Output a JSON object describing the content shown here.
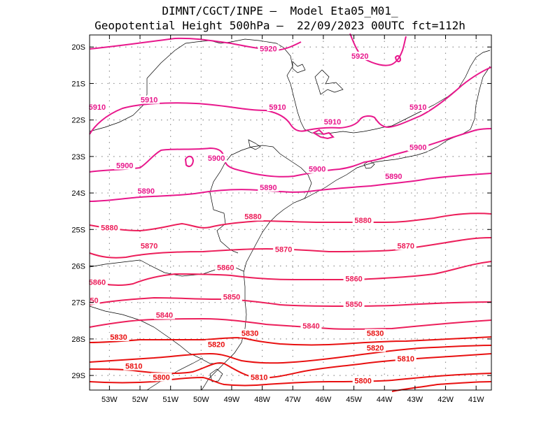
{
  "header": {
    "line1": "DIMNT/CGCT/INPE –  Model Eta05_M01_",
    "line2": "Geopotential Height 500hPa –  22/09/2023 00UTC fct=112h"
  },
  "colors": {
    "high": "#e8188c",
    "mid": "#ec1e5a",
    "low": "#e81010",
    "coast": "#000000",
    "grid": "#909090"
  },
  "axes": {
    "lat_labels": [
      "20S",
      "21S",
      "22S",
      "23S",
      "24S",
      "25S",
      "26S",
      "27S",
      "28S",
      "29S"
    ],
    "lon_labels": [
      "53W",
      "52W",
      "51W",
      "50W",
      "49W",
      "48W",
      "47W",
      "46W",
      "45W",
      "44W",
      "43W",
      "42W",
      "41W"
    ]
  },
  "map_data": {
    "type": "contour",
    "variable": "Geopotential Height 500hPa",
    "contour_labels": [
      {
        "text": "5920",
        "lon": -47.8,
        "lat": -20.1,
        "band": "high"
      },
      {
        "text": "5920",
        "lon": -44.8,
        "lat": -20.3,
        "band": "high"
      },
      {
        "text": "5910",
        "lon": -53.4,
        "lat": -21.7,
        "band": "high"
      },
      {
        "text": "5910",
        "lon": -51.7,
        "lat": -21.5,
        "band": "high"
      },
      {
        "text": "5910",
        "lon": -47.5,
        "lat": -21.7,
        "band": "high"
      },
      {
        "text": "5910",
        "lon": -45.7,
        "lat": -22.1,
        "band": "high"
      },
      {
        "text": "5910",
        "lon": -42.9,
        "lat": -21.7,
        "band": "high"
      },
      {
        "text": "5900",
        "lon": -52.5,
        "lat": -23.3,
        "band": "high"
      },
      {
        "text": "5900",
        "lon": -49.5,
        "lat": -23.1,
        "band": "high"
      },
      {
        "text": "5900",
        "lon": -46.2,
        "lat": -23.4,
        "band": "high"
      },
      {
        "text": "5900",
        "lon": -42.9,
        "lat": -22.8,
        "band": "high"
      },
      {
        "text": "5890",
        "lon": -51.8,
        "lat": -24.0,
        "band": "high"
      },
      {
        "text": "5890",
        "lon": -47.8,
        "lat": -23.9,
        "band": "high"
      },
      {
        "text": "5890",
        "lon": -43.7,
        "lat": -23.6,
        "band": "high"
      },
      {
        "text": "5880",
        "lon": -53.0,
        "lat": -25.0,
        "band": "mid"
      },
      {
        "text": "5880",
        "lon": -48.3,
        "lat": -24.7,
        "band": "mid"
      },
      {
        "text": "5880",
        "lon": -44.7,
        "lat": -24.8,
        "band": "mid"
      },
      {
        "text": "5870",
        "lon": -51.7,
        "lat": -25.5,
        "band": "mid"
      },
      {
        "text": "5870",
        "lon": -47.3,
        "lat": -25.6,
        "band": "mid"
      },
      {
        "text": "5870",
        "lon": -43.3,
        "lat": -25.5,
        "band": "mid"
      },
      {
        "text": "5860",
        "lon": -53.4,
        "lat": -26.5,
        "band": "mid"
      },
      {
        "text": "5860",
        "lon": -49.2,
        "lat": -26.1,
        "band": "mid"
      },
      {
        "text": "5860",
        "lon": -45.0,
        "lat": -26.4,
        "band": "mid"
      },
      {
        "text": "50",
        "lon": -53.5,
        "lat": -27.0,
        "band": "mid"
      },
      {
        "text": "5850",
        "lon": -49.0,
        "lat": -26.9,
        "band": "mid"
      },
      {
        "text": "5850",
        "lon": -45.0,
        "lat": -27.1,
        "band": "mid"
      },
      {
        "text": "5840",
        "lon": -51.2,
        "lat": -27.4,
        "band": "mid"
      },
      {
        "text": "5840",
        "lon": -46.4,
        "lat": -27.7,
        "band": "mid"
      },
      {
        "text": "5830",
        "lon": -52.7,
        "lat": -28.0,
        "band": "low"
      },
      {
        "text": "5830",
        "lon": -48.4,
        "lat": -27.9,
        "band": "low"
      },
      {
        "text": "5830",
        "lon": -44.3,
        "lat": -27.9,
        "band": "low"
      },
      {
        "text": "5820",
        "lon": -49.5,
        "lat": -28.2,
        "band": "low"
      },
      {
        "text": "5820",
        "lon": -44.3,
        "lat": -28.3,
        "band": "low"
      },
      {
        "text": "5810",
        "lon": -52.2,
        "lat": -28.8,
        "band": "low"
      },
      {
        "text": "5810",
        "lon": -48.1,
        "lat": -29.1,
        "band": "low"
      },
      {
        "text": "5810",
        "lon": -43.3,
        "lat": -28.6,
        "band": "low"
      },
      {
        "text": "5800",
        "lon": -51.3,
        "lat": -29.1,
        "band": "low"
      },
      {
        "text": "5800",
        "lon": -44.7,
        "lat": -29.2,
        "band": "low"
      }
    ]
  }
}
